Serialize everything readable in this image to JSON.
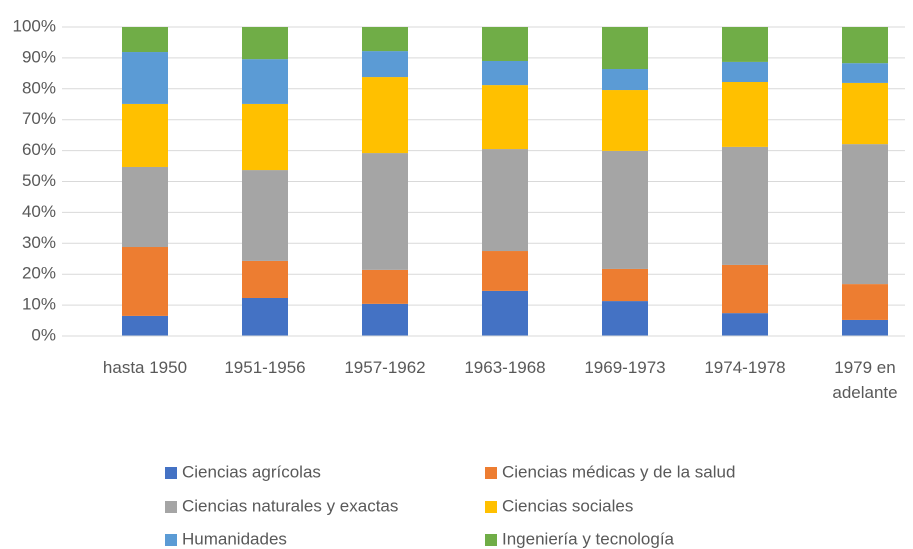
{
  "chart_data": {
    "type": "stacked_bar_100",
    "categories": [
      "hasta 1950",
      "1951-1956",
      "1957-1962",
      "1963-1968",
      "1969-1973",
      "1974-1978",
      "1979 en adelante"
    ],
    "series": [
      {
        "name": "Ciencias agrícolas",
        "color": "#4472c4",
        "values": [
          6.5,
          12.3,
          10.4,
          14.6,
          11.3,
          7.4,
          5.2
        ]
      },
      {
        "name": "Ciencias médicas y de la salud",
        "color": "#ed7d31",
        "values": [
          22.3,
          12.0,
          11.0,
          12.9,
          10.4,
          15.6,
          11.6
        ]
      },
      {
        "name": "Ciencias naturales y exactas",
        "color": "#a5a5a5",
        "values": [
          25.9,
          29.4,
          37.8,
          33.0,
          38.2,
          38.2,
          45.3
        ]
      },
      {
        "name": "Ciencias sociales",
        "color": "#ffc000",
        "values": [
          20.4,
          21.4,
          24.6,
          20.7,
          19.7,
          21.0,
          19.8
        ]
      },
      {
        "name": "Humanidades",
        "color": "#5b9bd5",
        "values": [
          16.8,
          14.5,
          8.4,
          7.8,
          6.8,
          6.5,
          6.4
        ]
      },
      {
        "name": "Ingeniería y tecnología",
        "color": "#70ad47",
        "values": [
          8.1,
          10.4,
          7.8,
          11.0,
          13.6,
          11.3,
          11.7
        ]
      }
    ],
    "ylim": [
      0,
      100
    ],
    "yticks": [
      {
        "value": 0,
        "label": "0%"
      },
      {
        "value": 10,
        "label": "10%"
      },
      {
        "value": 20,
        "label": "20%"
      },
      {
        "value": 30,
        "label": "30%"
      },
      {
        "value": 40,
        "label": "40%"
      },
      {
        "value": 50,
        "label": "50%"
      },
      {
        "value": 60,
        "label": "60%"
      },
      {
        "value": 70,
        "label": "70%"
      },
      {
        "value": 80,
        "label": "80%"
      },
      {
        "value": 90,
        "label": "90%"
      },
      {
        "value": 100,
        "label": "100%"
      }
    ],
    "grid": true,
    "legend": "bottom"
  }
}
